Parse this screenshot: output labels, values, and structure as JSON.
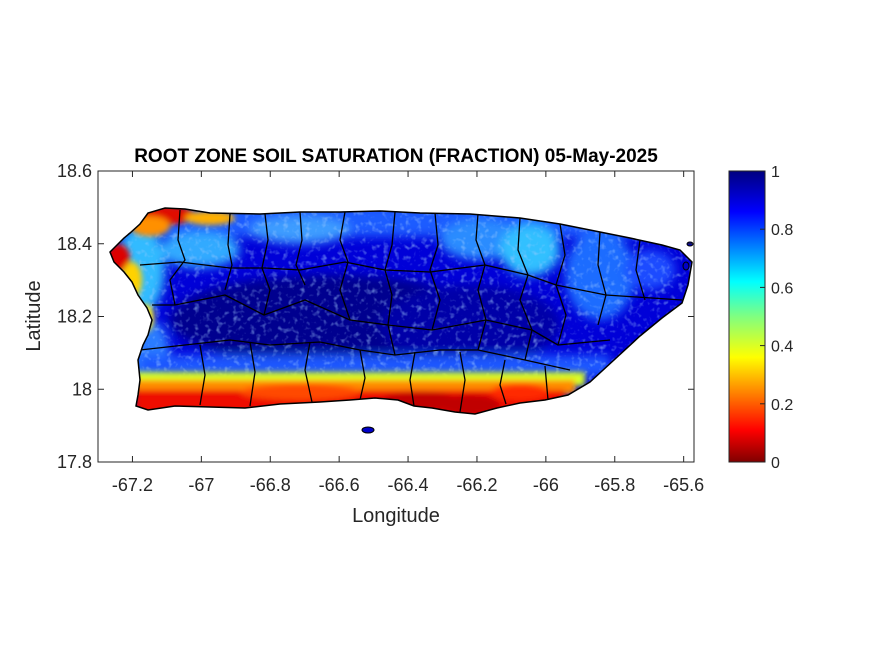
{
  "title": "ROOT ZONE SOIL SATURATION (FRACTION) 05-May-2025",
  "xlabel": "Longitude",
  "ylabel": "Latitude",
  "x_ticks": [
    "-67.2",
    "-67",
    "-66.8",
    "-66.6",
    "-66.4",
    "-66.2",
    "-66",
    "-65.8",
    "-65.6"
  ],
  "y_ticks": [
    "18.6",
    "18.4",
    "18.2",
    "18",
    "17.8"
  ],
  "colorbar": {
    "ticks": [
      "1",
      "0.8",
      "0.6",
      "0.4",
      "0.2",
      "0"
    ],
    "colormap": "jet",
    "range": [
      0,
      1
    ]
  },
  "map": {
    "region": "Puerto Rico",
    "xlim": [
      -67.3,
      -65.57
    ],
    "ylim": [
      17.8,
      18.6
    ],
    "boundaries": "municipality outlines (black)",
    "field_summary": "Saturation mostly 0.8-1.0 (dark blue) across interior; 0.0-0.3 (red/orange/yellow) along south coast, northwest corner and west coast; 0.5-0.7 (cyan/light blue) patches along north coast and northeast"
  },
  "chart_data": {
    "type": "heatmap",
    "title": "ROOT ZONE SOIL SATURATION (FRACTION) 05-May-2025",
    "xlabel": "Longitude",
    "ylabel": "Latitude",
    "xlim": [
      -67.3,
      -65.57
    ],
    "ylim": [
      17.8,
      18.6
    ],
    "x_ticks": [
      -67.2,
      -67,
      -66.8,
      -66.6,
      -66.4,
      -66.2,
      -66,
      -65.8,
      -65.6
    ],
    "y_ticks": [
      18.6,
      18.4,
      18.2,
      18,
      17.8
    ],
    "colorbar_range": [
      0,
      1
    ],
    "colorbar_ticks": [
      0,
      0.2,
      0.4,
      0.6,
      0.8,
      1
    ],
    "colormap": "jet",
    "grid": false
  }
}
